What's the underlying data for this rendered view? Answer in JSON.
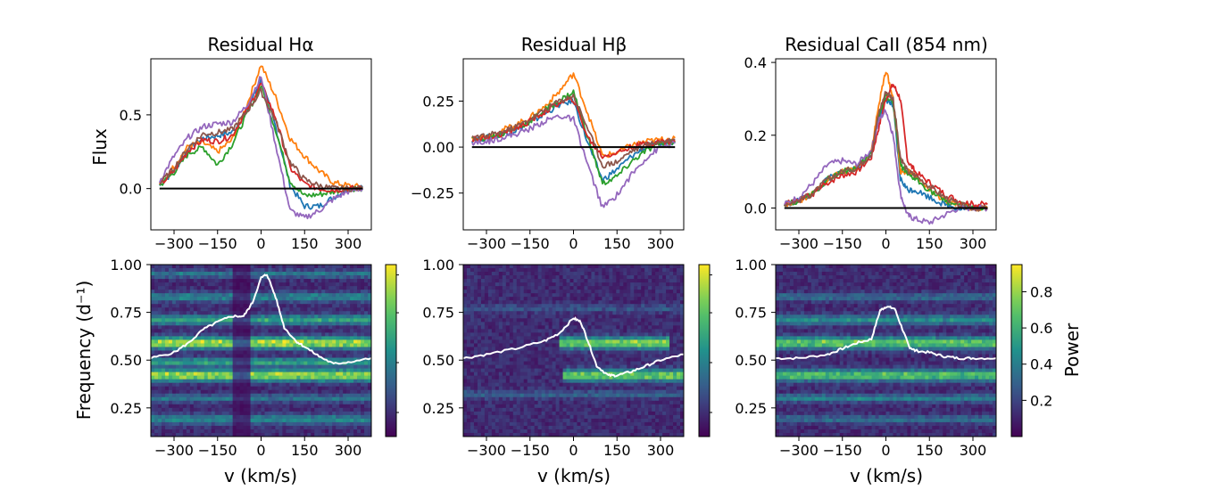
{
  "figure": {
    "panels_top": [
      {
        "title": "Residual Hα"
      },
      {
        "title": "Residual Hβ"
      },
      {
        "title": "Residual CaII (854 nm)"
      }
    ],
    "top_ylabel": "Flux",
    "bottom_ylabel": "Frequency (d⁻¹)",
    "bottom_xlabel": "v (km/s)",
    "colorbar_label": "Power"
  },
  "chart_data": [
    {
      "type": "line",
      "title": "Residual Hα",
      "xlabel": "",
      "ylabel": "Flux",
      "xlim": [
        -380,
        380
      ],
      "ylim": [
        -0.28,
        0.88
      ],
      "xticks": [
        -300,
        -150,
        0,
        150,
        300
      ],
      "xtick_labels": [
        "−300",
        "−150",
        "0",
        "150",
        "300"
      ],
      "yticks": [
        0.0,
        0.5
      ],
      "ytick_labels": [
        "0.0",
        "0.5"
      ],
      "zero_line": true,
      "x": [
        -350,
        -300,
        -250,
        -200,
        -150,
        -100,
        -50,
        0,
        50,
        100,
        150,
        200,
        250,
        300,
        350
      ],
      "series": [
        {
          "color": "#1f77b4",
          "values": [
            0.02,
            0.12,
            0.27,
            0.34,
            0.36,
            0.38,
            0.52,
            0.74,
            0.42,
            0.02,
            -0.12,
            -0.12,
            -0.06,
            0.0,
            0.01
          ]
        },
        {
          "color": "#ff7f0e",
          "values": [
            0.03,
            0.15,
            0.29,
            0.31,
            0.25,
            0.33,
            0.56,
            0.84,
            0.62,
            0.34,
            0.22,
            0.12,
            0.04,
            0.02,
            0.01
          ]
        },
        {
          "color": "#2ca02c",
          "values": [
            0.02,
            0.11,
            0.24,
            0.28,
            0.16,
            0.3,
            0.5,
            0.7,
            0.4,
            0.05,
            -0.05,
            -0.04,
            -0.02,
            0.0,
            0.0
          ]
        },
        {
          "color": "#d62728",
          "values": [
            0.02,
            0.12,
            0.26,
            0.33,
            0.32,
            0.36,
            0.53,
            0.71,
            0.48,
            0.14,
            0.03,
            0.0,
            -0.01,
            0.0,
            0.0
          ]
        },
        {
          "color": "#9467bd",
          "values": [
            0.05,
            0.22,
            0.35,
            0.42,
            0.44,
            0.45,
            0.56,
            0.76,
            0.3,
            -0.15,
            -0.2,
            -0.15,
            -0.07,
            -0.02,
            0.0
          ]
        },
        {
          "color": "#8c564b",
          "values": [
            0.03,
            0.14,
            0.28,
            0.37,
            0.38,
            0.4,
            0.52,
            0.66,
            0.46,
            0.18,
            0.06,
            0.02,
            0.0,
            0.0,
            0.0
          ]
        }
      ]
    },
    {
      "type": "line",
      "title": "Residual Hβ",
      "xlabel": "",
      "ylabel": "",
      "xlim": [
        -380,
        380
      ],
      "ylim": [
        -0.45,
        0.48
      ],
      "xticks": [
        -300,
        -150,
        0,
        150,
        300
      ],
      "xtick_labels": [
        "−300",
        "−150",
        "0",
        "150",
        "300"
      ],
      "yticks": [
        -0.25,
        0.0,
        0.25
      ],
      "ytick_labels": [
        "−0.25",
        "0.00",
        "0.25"
      ],
      "zero_line": true,
      "x": [
        -350,
        -300,
        -250,
        -200,
        -150,
        -100,
        -50,
        0,
        50,
        100,
        150,
        200,
        250,
        300,
        350
      ],
      "series": [
        {
          "color": "#1f77b4",
          "values": [
            0.04,
            0.05,
            0.07,
            0.09,
            0.13,
            0.18,
            0.23,
            0.25,
            0.02,
            -0.18,
            -0.12,
            -0.05,
            0.0,
            0.02,
            0.03
          ]
        },
        {
          "color": "#ff7f0e",
          "values": [
            0.05,
            0.06,
            0.09,
            0.12,
            0.16,
            0.22,
            0.3,
            0.4,
            0.18,
            -0.05,
            -0.03,
            0.01,
            0.03,
            0.04,
            0.05
          ]
        },
        {
          "color": "#2ca02c",
          "values": [
            0.04,
            0.05,
            0.07,
            0.1,
            0.14,
            0.2,
            0.25,
            0.3,
            0.05,
            -0.2,
            -0.16,
            -0.08,
            -0.02,
            0.02,
            0.03
          ]
        },
        {
          "color": "#d62728",
          "values": [
            0.04,
            0.05,
            0.07,
            0.1,
            0.14,
            0.19,
            0.24,
            0.26,
            0.05,
            -0.05,
            -0.03,
            0.0,
            0.02,
            0.03,
            0.03
          ]
        },
        {
          "color": "#9467bd",
          "values": [
            0.02,
            0.03,
            0.05,
            0.07,
            0.1,
            0.14,
            0.17,
            0.15,
            -0.1,
            -0.33,
            -0.26,
            -0.15,
            -0.06,
            0.0,
            0.02
          ]
        },
        {
          "color": "#8c564b",
          "values": [
            0.05,
            0.06,
            0.08,
            0.11,
            0.15,
            0.2,
            0.25,
            0.28,
            0.1,
            -0.1,
            -0.08,
            -0.02,
            0.01,
            0.03,
            0.04
          ]
        }
      ]
    },
    {
      "type": "line",
      "title": "Residual CaII (854 nm)",
      "xlabel": "",
      "ylabel": "",
      "xlim": [
        -380,
        380
      ],
      "ylim": [
        -0.06,
        0.41
      ],
      "xticks": [
        -300,
        -150,
        0,
        150,
        300
      ],
      "xtick_labels": [
        "−300",
        "−150",
        "0",
        "150",
        "300"
      ],
      "yticks": [
        0.0,
        0.2,
        0.4
      ],
      "ytick_labels": [
        "0.0",
        "0.2",
        "0.4"
      ],
      "zero_line": true,
      "x": [
        -350,
        -300,
        -250,
        -200,
        -150,
        -100,
        -50,
        -25,
        0,
        25,
        50,
        75,
        100,
        150,
        200,
        250,
        300,
        350
      ],
      "series": [
        {
          "color": "#1f77b4",
          "values": [
            0.01,
            0.02,
            0.04,
            0.08,
            0.1,
            0.11,
            0.15,
            0.25,
            0.3,
            0.28,
            0.08,
            0.05,
            0.05,
            0.03,
            0.01,
            0.0,
            0.0,
            0.0
          ]
        },
        {
          "color": "#ff7f0e",
          "values": [
            0.01,
            0.02,
            0.04,
            0.08,
            0.1,
            0.11,
            0.16,
            0.28,
            0.38,
            0.3,
            0.1,
            0.1,
            0.09,
            0.05,
            0.02,
            0.01,
            0.0,
            0.0
          ]
        },
        {
          "color": "#2ca02c",
          "values": [
            0.01,
            0.02,
            0.04,
            0.08,
            0.1,
            0.11,
            0.15,
            0.25,
            0.31,
            0.29,
            0.12,
            0.09,
            0.08,
            0.05,
            0.02,
            0.01,
            0.0,
            0.0
          ]
        },
        {
          "color": "#d62728",
          "values": [
            0.01,
            0.02,
            0.04,
            0.07,
            0.09,
            0.1,
            0.14,
            0.22,
            0.3,
            0.34,
            0.3,
            0.13,
            0.1,
            0.07,
            0.04,
            0.02,
            0.01,
            0.01
          ]
        },
        {
          "color": "#9467bd",
          "values": [
            0.01,
            0.03,
            0.07,
            0.12,
            0.13,
            0.12,
            0.16,
            0.24,
            0.27,
            0.2,
            0.04,
            -0.02,
            -0.03,
            -0.04,
            -0.02,
            0.0,
            0.0,
            0.0
          ]
        },
        {
          "color": "#8c564b",
          "values": [
            0.01,
            0.02,
            0.04,
            0.08,
            0.1,
            0.11,
            0.15,
            0.26,
            0.32,
            0.3,
            0.14,
            0.1,
            0.09,
            0.06,
            0.03,
            0.01,
            0.0,
            0.0
          ]
        }
      ]
    },
    {
      "type": "heatmap",
      "title": "",
      "xlabel": "v (km/s)",
      "ylabel": "Frequency (d⁻¹)",
      "xlim": [
        -380,
        380
      ],
      "ylim": [
        0.1,
        1.0
      ],
      "xticks": [
        -300,
        -150,
        0,
        150,
        300
      ],
      "xtick_labels": [
        "−300",
        "−150",
        "0",
        "150",
        "300"
      ],
      "yticks": [
        0.25,
        0.5,
        0.75,
        1.0
      ],
      "ytick_labels": [
        "0.25",
        "0.50",
        "0.75",
        "1.00"
      ],
      "bands": [
        {
          "f": 0.19,
          "a": 0.35,
          "w": 0.025,
          "xmin": -380,
          "xmax": 380
        },
        {
          "f": 0.3,
          "a": 0.3,
          "w": 0.02,
          "xmin": -380,
          "xmax": 380
        },
        {
          "f": 0.42,
          "a": 0.8,
          "w": 0.03,
          "xmin": -380,
          "xmax": 380
        },
        {
          "f": 0.49,
          "a": 0.5,
          "w": 0.02,
          "xmin": -380,
          "xmax": 380
        },
        {
          "f": 0.59,
          "a": 0.85,
          "w": 0.03,
          "xmin": -380,
          "xmax": 380
        },
        {
          "f": 0.71,
          "a": 0.5,
          "w": 0.025,
          "xmin": -380,
          "xmax": 380
        },
        {
          "f": 0.83,
          "a": 0.35,
          "w": 0.025,
          "xmin": -380,
          "xmax": 380
        },
        {
          "f": 0.95,
          "a": 0.3,
          "w": 0.02,
          "xmin": -380,
          "xmax": 380
        }
      ],
      "dark_column": [
        -100,
        -40
      ],
      "overlay_profile": {
        "color": "#ffffff",
        "x": [
          -380,
          -300,
          -250,
          -200,
          -150,
          -100,
          -60,
          -30,
          0,
          20,
          50,
          80,
          120,
          150,
          200,
          250,
          300,
          380
        ],
        "y": [
          0.51,
          0.54,
          0.59,
          0.66,
          0.7,
          0.73,
          0.73,
          0.8,
          0.93,
          0.95,
          0.83,
          0.67,
          0.6,
          0.57,
          0.52,
          0.48,
          0.49,
          0.51
        ]
      }
    },
    {
      "type": "heatmap",
      "title": "",
      "xlabel": "v (km/s)",
      "ylabel": "",
      "xlim": [
        -380,
        380
      ],
      "ylim": [
        0.1,
        1.0
      ],
      "xticks": [
        -300,
        -150,
        0,
        150,
        300
      ],
      "xtick_labels": [
        "−300",
        "−150",
        "0",
        "150",
        "300"
      ],
      "yticks": [
        0.25,
        0.5,
        0.75,
        1.0
      ],
      "ytick_labels": [
        "0.25",
        "0.50",
        "0.75",
        "1.00"
      ],
      "bands": [
        {
          "f": 0.59,
          "a": 0.75,
          "w": 0.03,
          "xmin": -50,
          "xmax": 330
        },
        {
          "f": 0.42,
          "a": 0.7,
          "w": 0.03,
          "xmin": -40,
          "xmax": 380
        },
        {
          "f": 0.32,
          "a": 0.2,
          "w": 0.02,
          "xmin": -380,
          "xmax": 380
        },
        {
          "f": 0.77,
          "a": 0.15,
          "w": 0.02,
          "xmin": -380,
          "xmax": 380
        }
      ],
      "dark_column": null,
      "overlay_profile": {
        "color": "#ffffff",
        "x": [
          -380,
          -300,
          -200,
          -100,
          -50,
          0,
          25,
          50,
          80,
          120,
          150,
          200,
          250,
          300,
          380
        ],
        "y": [
          0.51,
          0.53,
          0.56,
          0.6,
          0.64,
          0.72,
          0.7,
          0.6,
          0.47,
          0.42,
          0.42,
          0.44,
          0.47,
          0.5,
          0.53
        ]
      }
    },
    {
      "type": "heatmap",
      "title": "",
      "xlabel": "v (km/s)",
      "ylabel": "",
      "xlim": [
        -380,
        380
      ],
      "ylim": [
        0.1,
        1.0
      ],
      "xticks": [
        -300,
        -150,
        0,
        150,
        300
      ],
      "xtick_labels": [
        "−300",
        "−150",
        "0",
        "150",
        "300"
      ],
      "yticks": [
        0.25,
        0.5,
        0.75,
        1.0
      ],
      "ytick_labels": [
        "0.25",
        "0.50",
        "0.75",
        "1.00"
      ],
      "bands": [
        {
          "f": 0.59,
          "a": 0.7,
          "w": 0.03,
          "xmin": -380,
          "xmax": 380
        },
        {
          "f": 0.42,
          "a": 0.65,
          "w": 0.03,
          "xmin": -380,
          "xmax": 380
        },
        {
          "f": 0.71,
          "a": 0.4,
          "w": 0.025,
          "xmin": -380,
          "xmax": 380
        },
        {
          "f": 0.3,
          "a": 0.35,
          "w": 0.02,
          "xmin": -380,
          "xmax": 380
        },
        {
          "f": 0.19,
          "a": 0.25,
          "w": 0.02,
          "xmin": -380,
          "xmax": 380
        },
        {
          "f": 0.83,
          "a": 0.25,
          "w": 0.02,
          "xmin": -380,
          "xmax": 380
        }
      ],
      "dark_column": null,
      "overlay_profile": {
        "color": "#ffffff",
        "x": [
          -380,
          -300,
          -200,
          -150,
          -100,
          -50,
          -20,
          0,
          30,
          60,
          80,
          100,
          150,
          200,
          250,
          300,
          380
        ],
        "y": [
          0.51,
          0.51,
          0.53,
          0.56,
          0.59,
          0.61,
          0.76,
          0.78,
          0.77,
          0.65,
          0.57,
          0.55,
          0.54,
          0.52,
          0.51,
          0.51,
          0.51
        ]
      }
    }
  ],
  "colorbars": [
    {
      "ticks": [],
      "tick_labels": []
    },
    {
      "ticks": [],
      "tick_labels": []
    },
    {
      "ticks": [
        0.2,
        0.4,
        0.6,
        0.8
      ],
      "tick_labels": [
        "0.2",
        "0.4",
        "0.6",
        "0.8"
      ],
      "range": [
        0.0,
        0.95
      ]
    }
  ]
}
